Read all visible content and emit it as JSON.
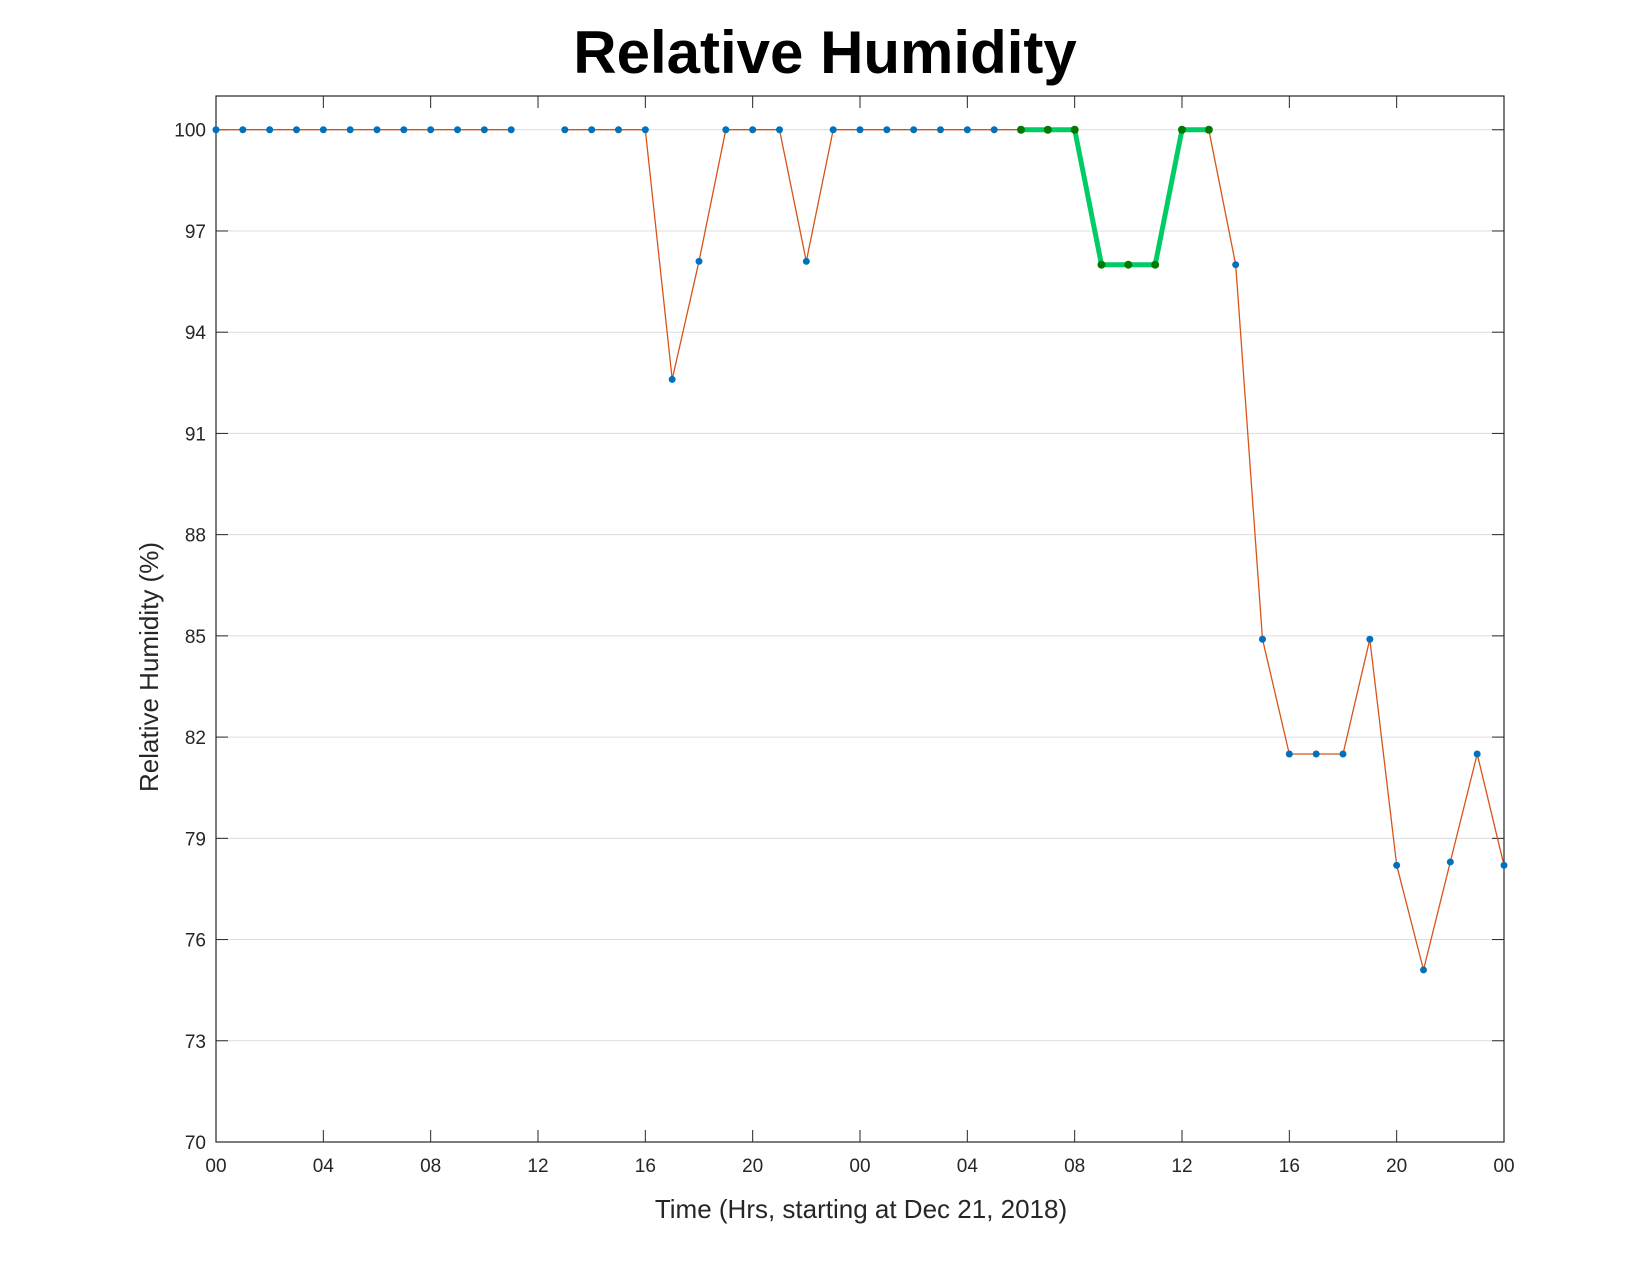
{
  "chart_data": {
    "type": "line",
    "title": "Relative Humidity",
    "xlabel": "Time (Hrs, starting at Dec 21, 2018)",
    "ylabel": "Relative Humidity (%)",
    "xlim": [
      0,
      48
    ],
    "ylim": [
      70,
      101
    ],
    "x_tick_values": [
      0,
      4,
      8,
      12,
      16,
      20,
      24,
      28,
      32,
      36,
      40,
      44,
      48
    ],
    "x_tick_labels": [
      "00",
      "04",
      "08",
      "12",
      "16",
      "20",
      "00",
      "04",
      "08",
      "12",
      "16",
      "20",
      "00"
    ],
    "y_ticks": [
      70,
      73,
      76,
      79,
      82,
      85,
      88,
      91,
      94,
      97,
      100
    ],
    "grid": "horizontal",
    "series": [
      {
        "color": "#d95319",
        "marker_color": "#0072bd",
        "points": [
          [
            0,
            100
          ],
          [
            1,
            100
          ],
          [
            2,
            100
          ],
          [
            3,
            100
          ],
          [
            4,
            100
          ],
          [
            5,
            100
          ],
          [
            6,
            100
          ],
          [
            7,
            100
          ],
          [
            8,
            100
          ],
          [
            9,
            100
          ],
          [
            10,
            100
          ],
          [
            11,
            100
          ],
          null,
          [
            13,
            100
          ],
          [
            14,
            100
          ],
          [
            15,
            100
          ],
          [
            16,
            100
          ],
          [
            17,
            92.6
          ],
          [
            18,
            96.1
          ],
          [
            19,
            100
          ],
          [
            20,
            100
          ],
          [
            21,
            100
          ],
          [
            22,
            96.1
          ],
          [
            23,
            100
          ],
          [
            24,
            100
          ],
          [
            25,
            100
          ],
          [
            26,
            100
          ],
          [
            27,
            100
          ],
          [
            28,
            100
          ],
          [
            29,
            100
          ],
          [
            30,
            100
          ],
          [
            31,
            100
          ],
          [
            32,
            100
          ],
          [
            33,
            96
          ],
          [
            34,
            96
          ],
          [
            35,
            96
          ],
          [
            36,
            100
          ],
          [
            37,
            100
          ],
          [
            38,
            96
          ],
          [
            39,
            84.9
          ],
          [
            40,
            81.5
          ],
          [
            41,
            81.5
          ],
          [
            42,
            81.5
          ],
          [
            43,
            84.9
          ],
          [
            44,
            78.2
          ],
          [
            45,
            75.1
          ],
          [
            46,
            78.3
          ],
          [
            47,
            81.5
          ],
          [
            48,
            78.2
          ]
        ]
      },
      {
        "color": "#00cc66",
        "marker_color": "#007a00",
        "points": [
          [
            30,
            100
          ],
          [
            31,
            100
          ],
          [
            32,
            100
          ],
          [
            33,
            96
          ],
          [
            34,
            96
          ],
          [
            35,
            96
          ],
          [
            36,
            100
          ],
          [
            37,
            100
          ]
        ]
      }
    ]
  }
}
